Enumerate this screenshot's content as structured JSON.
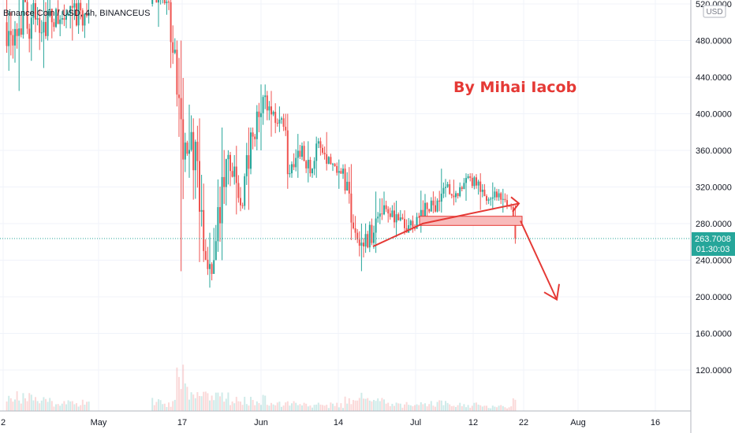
{
  "header": {
    "title": "Binance Coin / USD, 4h, BINANCEUS"
  },
  "currency_button": "USD",
  "annotation": "By Mihai Iacob",
  "colors": {
    "up": "#26a69a",
    "down": "#ef5350",
    "drawing": "#e53935",
    "zone_fill": "#f8bbbb",
    "last_price": "#26a69a"
  },
  "chart_data": {
    "type": "candlestick",
    "y_axis": {
      "ticks": [
        "520.0000",
        "480.0000",
        "440.0000",
        "400.0000",
        "360.0000",
        "320.0000",
        "280.0000",
        "240.0000",
        "200.0000",
        "160.0000",
        "120.0000"
      ],
      "ylim": [
        90,
        530
      ]
    },
    "x_axis": {
      "ticks": [
        "2",
        "May",
        "17",
        "Jun",
        "14",
        "Jul",
        "12",
        "22",
        "Aug",
        "16"
      ]
    },
    "last_price": {
      "value": "263.7008",
      "countdown": "01:30:03"
    },
    "segments": [
      {
        "start": 1,
        "end": 14,
        "open": 500,
        "close": 505,
        "low": 425,
        "high": 545,
        "vol": 14
      },
      {
        "start": 14,
        "end": 24,
        "open": 505,
        "close": 500,
        "low": 450,
        "high": 540,
        "vol": 10
      },
      {
        "start": 24,
        "end": 42,
        "open": 500,
        "close": 510,
        "low": 480,
        "high": 545,
        "vol": 8
      },
      {
        "start": 72,
        "end": 78,
        "open": 520,
        "close": 535,
        "low": 495,
        "high": 545,
        "vol": 10
      },
      {
        "start": 78,
        "end": 84,
        "open": 535,
        "close": 470,
        "low": 450,
        "high": 540,
        "vol": 8
      },
      {
        "start": 84,
        "end": 88,
        "open": 470,
        "close": 350,
        "low": 228,
        "high": 480,
        "vol": 35
      },
      {
        "start": 88,
        "end": 92,
        "open": 350,
        "close": 380,
        "low": 330,
        "high": 410,
        "vol": 20
      },
      {
        "start": 92,
        "end": 98,
        "open": 380,
        "close": 250,
        "low": 238,
        "high": 395,
        "vol": 20
      },
      {
        "start": 98,
        "end": 102,
        "open": 250,
        "close": 225,
        "low": 210,
        "high": 270,
        "vol": 15
      },
      {
        "start": 102,
        "end": 110,
        "open": 225,
        "close": 355,
        "low": 240,
        "high": 385,
        "vol": 14
      },
      {
        "start": 110,
        "end": 116,
        "open": 355,
        "close": 300,
        "low": 290,
        "high": 365,
        "vol": 10
      },
      {
        "start": 116,
        "end": 122,
        "open": 300,
        "close": 375,
        "low": 295,
        "high": 385,
        "vol": 10
      },
      {
        "start": 122,
        "end": 128,
        "open": 375,
        "close": 420,
        "low": 360,
        "high": 432,
        "vol": 12
      },
      {
        "start": 128,
        "end": 133,
        "open": 420,
        "close": 390,
        "low": 375,
        "high": 425,
        "vol": 8
      },
      {
        "start": 133,
        "end": 136,
        "open": 390,
        "close": 395,
        "low": 380,
        "high": 408,
        "vol": 7
      },
      {
        "start": 136,
        "end": 140,
        "open": 395,
        "close": 335,
        "low": 318,
        "high": 400,
        "vol": 8
      },
      {
        "start": 140,
        "end": 146,
        "open": 335,
        "close": 365,
        "low": 330,
        "high": 378,
        "vol": 7
      },
      {
        "start": 146,
        "end": 150,
        "open": 365,
        "close": 335,
        "low": 325,
        "high": 370,
        "vol": 6
      },
      {
        "start": 150,
        "end": 154,
        "open": 335,
        "close": 370,
        "low": 330,
        "high": 375,
        "vol": 7
      },
      {
        "start": 154,
        "end": 160,
        "open": 370,
        "close": 345,
        "low": 338,
        "high": 380,
        "vol": 6
      },
      {
        "start": 160,
        "end": 166,
        "open": 345,
        "close": 340,
        "low": 318,
        "high": 350,
        "vol": 6
      },
      {
        "start": 166,
        "end": 172,
        "open": 340,
        "close": 270,
        "low": 262,
        "high": 345,
        "vol": 12
      },
      {
        "start": 172,
        "end": 176,
        "open": 270,
        "close": 255,
        "low": 228,
        "high": 280,
        "vol": 16
      },
      {
        "start": 176,
        "end": 186,
        "open": 255,
        "close": 300,
        "low": 248,
        "high": 315,
        "vol": 10
      },
      {
        "start": 186,
        "end": 196,
        "open": 300,
        "close": 275,
        "low": 265,
        "high": 305,
        "vol": 6
      },
      {
        "start": 196,
        "end": 210,
        "open": 275,
        "close": 300,
        "low": 270,
        "high": 316,
        "vol": 7
      },
      {
        "start": 210,
        "end": 216,
        "open": 300,
        "close": 320,
        "low": 292,
        "high": 340,
        "vol": 8
      },
      {
        "start": 216,
        "end": 222,
        "open": 320,
        "close": 310,
        "low": 300,
        "high": 328,
        "vol": 6
      },
      {
        "start": 222,
        "end": 228,
        "open": 310,
        "close": 330,
        "low": 305,
        "high": 335,
        "vol": 6
      },
      {
        "start": 228,
        "end": 236,
        "open": 330,
        "close": 305,
        "low": 295,
        "high": 335,
        "vol": 6
      },
      {
        "start": 236,
        "end": 240,
        "open": 305,
        "close": 315,
        "low": 295,
        "high": 325,
        "vol": 5
      },
      {
        "start": 240,
        "end": 246,
        "open": 315,
        "close": 300,
        "low": 292,
        "high": 318,
        "vol": 5
      },
      {
        "start": 246,
        "end": 248,
        "open": 300,
        "close": 298,
        "low": 295,
        "high": 302,
        "vol": 4
      },
      {
        "start": 248,
        "end": 250,
        "open": 298,
        "close": 264,
        "low": 258,
        "high": 300,
        "vol": 10
      }
    ]
  }
}
